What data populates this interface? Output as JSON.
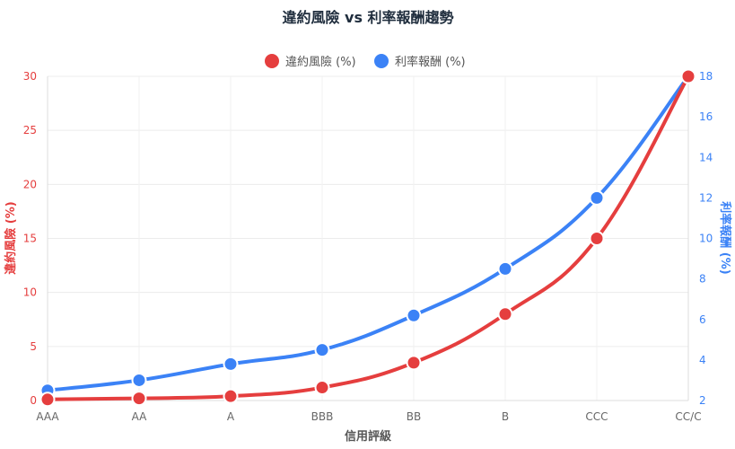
{
  "chart_data": {
    "type": "line",
    "title": "違約風險 vs 利率報酬趨勢",
    "xlabel": "信用評級",
    "categories": [
      "AAA",
      "AA",
      "A",
      "BBB",
      "BB",
      "B",
      "CCC",
      "CC/C"
    ],
    "y_left": {
      "label": "違約風險 (%)",
      "range": [
        0,
        30
      ],
      "ticks": [
        0,
        5,
        10,
        15,
        20,
        25,
        30
      ],
      "color": "#e53e3e"
    },
    "y_right": {
      "label": "利率報酬 (%)",
      "range": [
        2,
        18
      ],
      "ticks": [
        2,
        4,
        6,
        8,
        10,
        12,
        14,
        16,
        18
      ],
      "color": "#3b82f6"
    },
    "series": [
      {
        "name": "違約風險 (%)",
        "axis": "left",
        "color": "#e53e3e",
        "values": [
          0.1,
          0.2,
          0.4,
          1.2,
          3.5,
          8,
          15,
          30
        ]
      },
      {
        "name": "利率報酬 (%)",
        "axis": "right",
        "color": "#3b82f6",
        "values": [
          2.5,
          3,
          3.8,
          4.5,
          6.2,
          8.5,
          12,
          18
        ]
      }
    ],
    "legend_position": "top",
    "grid": true
  }
}
